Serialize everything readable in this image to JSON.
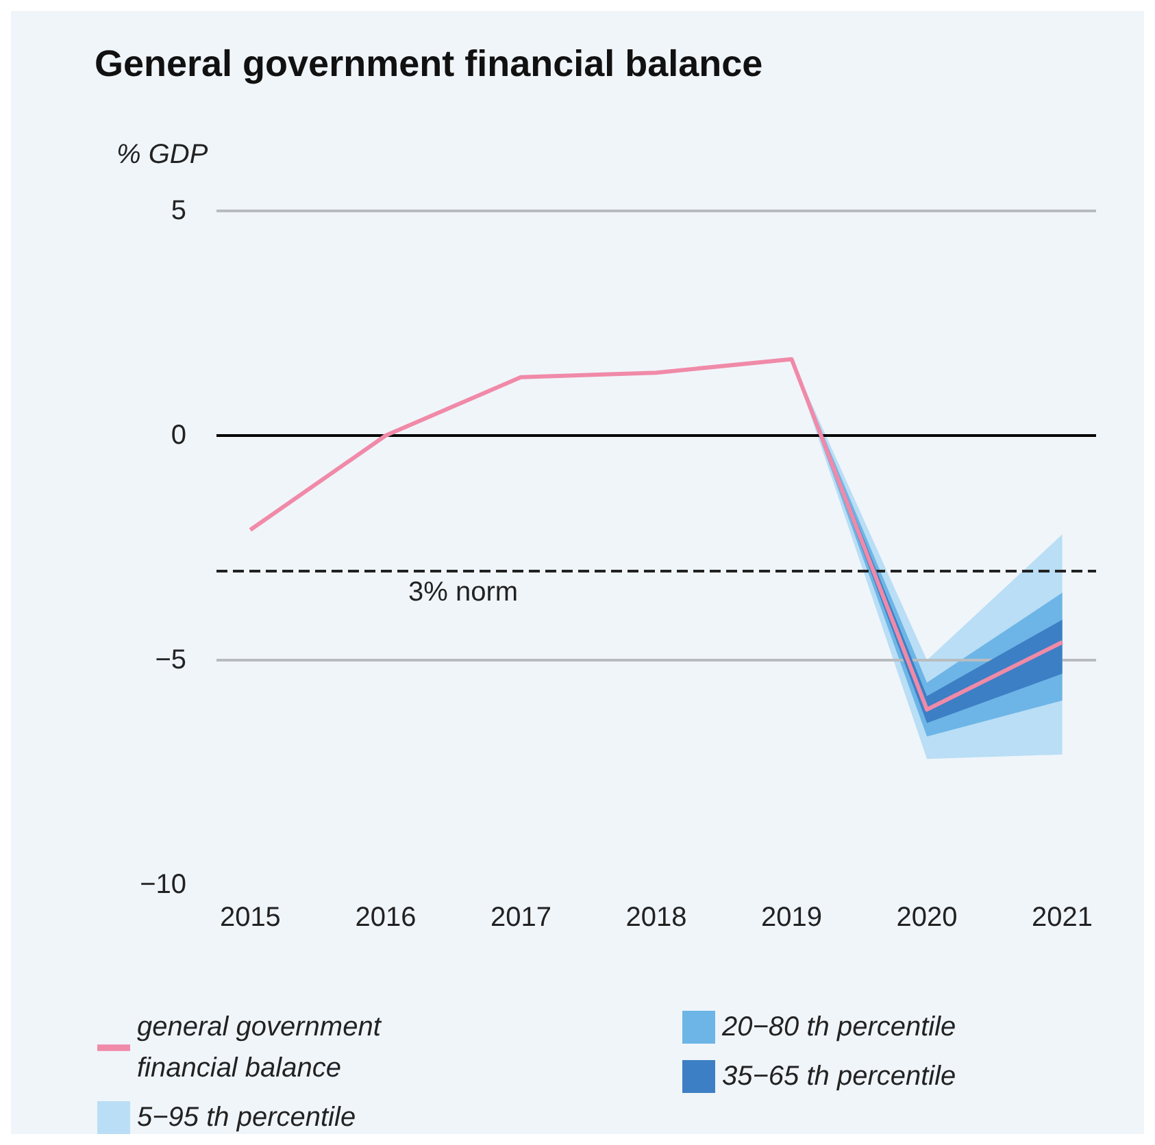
{
  "chart_data": {
    "type": "line",
    "title": "General government financial balance",
    "ylabel": "% GDP",
    "x": [
      2015,
      2016,
      2017,
      2018,
      2019,
      2020,
      2021
    ],
    "series": [
      {
        "name": "general government financial balance",
        "color": "#f08aa8",
        "values": [
          -2.1,
          0,
          1.3,
          1.4,
          1.7,
          -6.1,
          -4.6
        ]
      },
      {
        "name": "5−95 th percentile",
        "type": "area",
        "color": "#b9def5",
        "x": [
          2019,
          2020,
          2021
        ],
        "values": [
          null,
          null,
          null
        ],
        "lower": [
          1.7,
          -7.2,
          -7.1
        ],
        "upper": [
          1.7,
          -5.0,
          -2.2
        ]
      },
      {
        "name": "20−80 th percentile",
        "type": "area",
        "color": "#6db5e6",
        "x": [
          2019,
          2020,
          2021
        ],
        "values": [
          null,
          null,
          null
        ],
        "lower": [
          1.7,
          -6.7,
          -5.9
        ],
        "upper": [
          1.7,
          -5.5,
          -3.5
        ]
      },
      {
        "name": "35−65 th percentile",
        "type": "area",
        "color": "#3d7fc4",
        "x": [
          2019,
          2020,
          2021
        ],
        "values": [
          null,
          null,
          null
        ],
        "lower": [
          1.7,
          -6.4,
          -5.3
        ],
        "upper": [
          1.7,
          -5.8,
          -4.1
        ]
      }
    ],
    "xlim": [
      2014.75,
      2021.25
    ],
    "xticks": [
      2015,
      2016,
      2017,
      2018,
      2019,
      2020,
      2021
    ],
    "ylim": [
      -10,
      5
    ],
    "yticks": [
      {
        "value": -10,
        "label": "−10"
      },
      {
        "value": -5,
        "label": "−5"
      },
      0,
      5
    ],
    "ref_lines": [
      {
        "axis": "y",
        "value": 5,
        "color": "#b8bcc0",
        "line_style": "solid"
      },
      {
        "axis": "y",
        "value": -5,
        "color": "#b8bcc0",
        "line_style": "solid"
      },
      {
        "axis": "y",
        "value": 0,
        "color": "#000000",
        "line_style": "solid"
      },
      {
        "axis": "y",
        "value": -3,
        "label": "3% norm",
        "color": "#222222",
        "line_style": "dashed"
      }
    ],
    "legend": "bottom"
  }
}
